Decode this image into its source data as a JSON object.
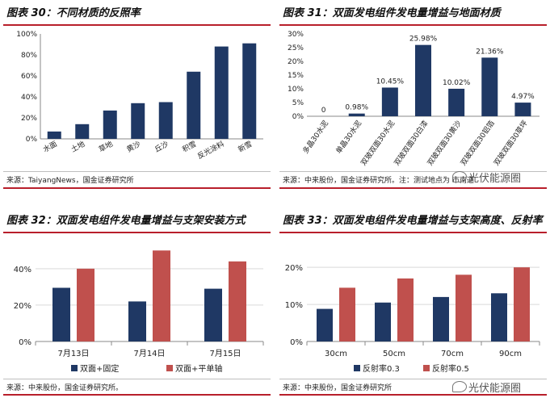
{
  "panels": {
    "p30": {
      "title": "图表 30：不同材质的反照率",
      "source": "来源：TaiyangNews，国金证券研究所",
      "chart_data": {
        "type": "bar",
        "categories": [
          "水面",
          "土地",
          "草地",
          "黄沙",
          "丘沙",
          "积雪",
          "反光涂料",
          "新雪"
        ],
        "values": [
          7,
          14,
          27,
          34,
          35,
          64,
          88,
          91
        ],
        "yticks": [
          "0%",
          "20%",
          "40%",
          "60%",
          "80%",
          "100%"
        ],
        "ylim": [
          0,
          100
        ],
        "color": "#1f3864"
      }
    },
    "p31": {
      "title": "图表 31：双面发电组件发电量增益与地面材质",
      "source": "来源：中来股份，国金证券研究所。注：测试地点为     市南通",
      "chart_data": {
        "type": "bar",
        "categories": [
          "多晶30水泥",
          "单晶30水泥",
          "双玻双面30水泥",
          "双玻双面30白漆",
          "双玻双面30黄沙",
          "双玻双面30铝箔",
          "双玻双面30草坪"
        ],
        "values": [
          0,
          0.98,
          10.45,
          25.98,
          10.02,
          21.36,
          4.97
        ],
        "labels": [
          "0",
          "0.98%",
          "10.45%",
          "25.98%",
          "10.02%",
          "21.36%",
          "4.97%"
        ],
        "yticks": [
          "0%",
          "5%",
          "10%",
          "15%",
          "20%",
          "25%",
          "30%"
        ],
        "ylim": [
          0,
          30
        ],
        "color": "#1f3864"
      }
    },
    "p32": {
      "title": "图表 32：双面发电组件发电量增益与支架安装方式",
      "source": "来源：中来股份，国金证券研究所。",
      "chart_data": {
        "type": "bar",
        "categories": [
          "7月13日",
          "7月14日",
          "7月15日"
        ],
        "series": [
          {
            "name": "双面+固定",
            "values": [
              29.5,
              22,
              29
            ],
            "color": "#1f3864"
          },
          {
            "name": "双面+平单轴",
            "values": [
              40,
              50,
              44
            ],
            "color": "#c0504d"
          }
        ],
        "yticks": [
          "0%",
          "20%",
          "40%"
        ],
        "ylim": [
          0,
          55
        ]
      }
    },
    "p33": {
      "title": "图表 33：双面发电组件发电量增益与支架高度、反射率",
      "source": "来源：中来股份，国金证券研究所",
      "chart_data": {
        "type": "bar",
        "categories": [
          "30cm",
          "50cm",
          "70cm",
          "90cm"
        ],
        "series": [
          {
            "name": "反射率0.3",
            "values": [
              8.8,
              10.5,
              12,
              13
            ],
            "color": "#1f3864"
          },
          {
            "name": "反射率0.5",
            "values": [
              14.5,
              17,
              18,
              20
            ],
            "color": "#c0504d"
          }
        ],
        "yticks": [
          "0%",
          "10%",
          "20%"
        ],
        "ylim": [
          0,
          27
        ]
      }
    }
  },
  "watermark": "光伏能源圈"
}
